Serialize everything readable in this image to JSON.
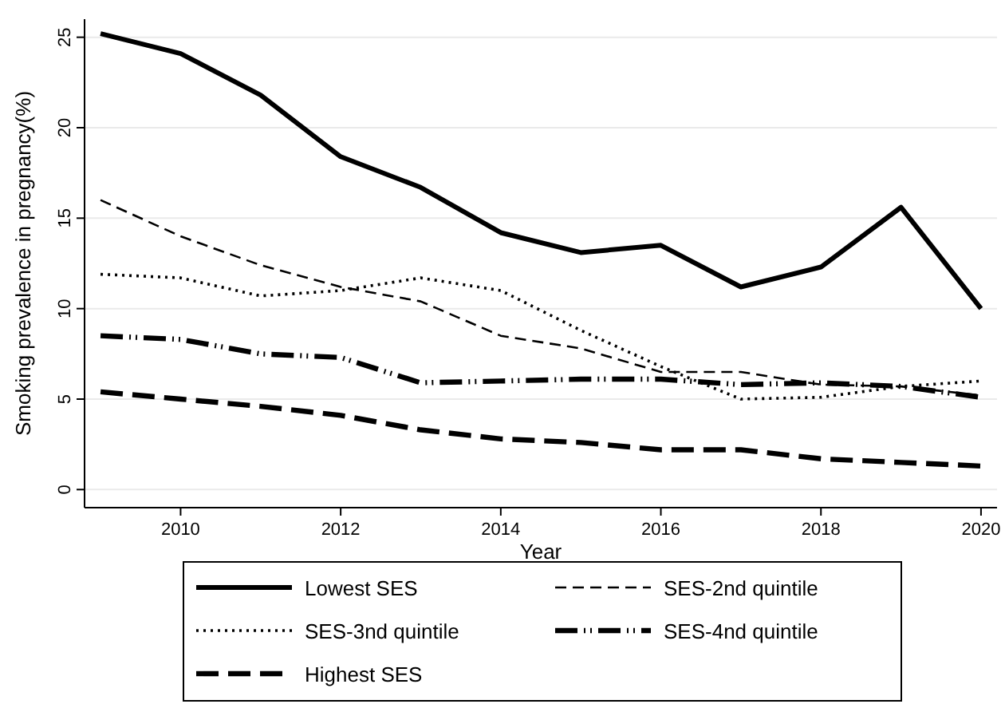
{
  "chart_data": {
    "type": "line",
    "xlabel": "Year",
    "ylabel": "Smoking prevalence in pregnancy(%)",
    "x": [
      2009,
      2010,
      2011,
      2012,
      2013,
      2014,
      2015,
      2016,
      2017,
      2018,
      2019,
      2020
    ],
    "xlim": [
      2008.8,
      2020.2
    ],
    "xticks": [
      2010,
      2012,
      2014,
      2016,
      2018,
      2020
    ],
    "ylim": [
      -1,
      26
    ],
    "yticks": [
      0,
      5,
      10,
      15,
      20,
      25
    ],
    "grid": "y",
    "legend": "bottom",
    "marker": "none",
    "series": [
      {
        "name": "Lowest SES",
        "color": "#000000",
        "line_style": "solid",
        "values": [
          25.2,
          24.1,
          21.8,
          18.4,
          16.7,
          14.2,
          13.1,
          13.5,
          11.2,
          12.3,
          15.6,
          10.0
        ]
      },
      {
        "name": "SES-2nd quintile",
        "color": "#000000",
        "line_style": "dashed",
        "values": [
          16.0,
          14.0,
          12.4,
          11.2,
          10.4,
          8.5,
          7.8,
          6.5,
          6.5,
          5.8,
          5.7,
          5.2
        ]
      },
      {
        "name": "SES-3nd quintile",
        "color": "#000000",
        "line_style": "dotted",
        "values": [
          11.9,
          11.7,
          10.7,
          11.0,
          11.7,
          11.0,
          8.8,
          6.8,
          5.0,
          5.1,
          5.7,
          6.0
        ]
      },
      {
        "name": "SES-4nd quintile",
        "color": "#000000",
        "line_style": "dashdot",
        "values": [
          8.5,
          8.3,
          7.5,
          7.3,
          5.9,
          6.0,
          6.1,
          6.1,
          5.8,
          5.9,
          5.7,
          5.1
        ]
      },
      {
        "name": "Highest SES",
        "color": "#000000",
        "line_style": "longdash",
        "values": [
          5.4,
          5.0,
          4.6,
          4.1,
          3.3,
          2.8,
          2.6,
          2.2,
          2.2,
          1.7,
          1.5,
          1.3
        ]
      }
    ]
  }
}
